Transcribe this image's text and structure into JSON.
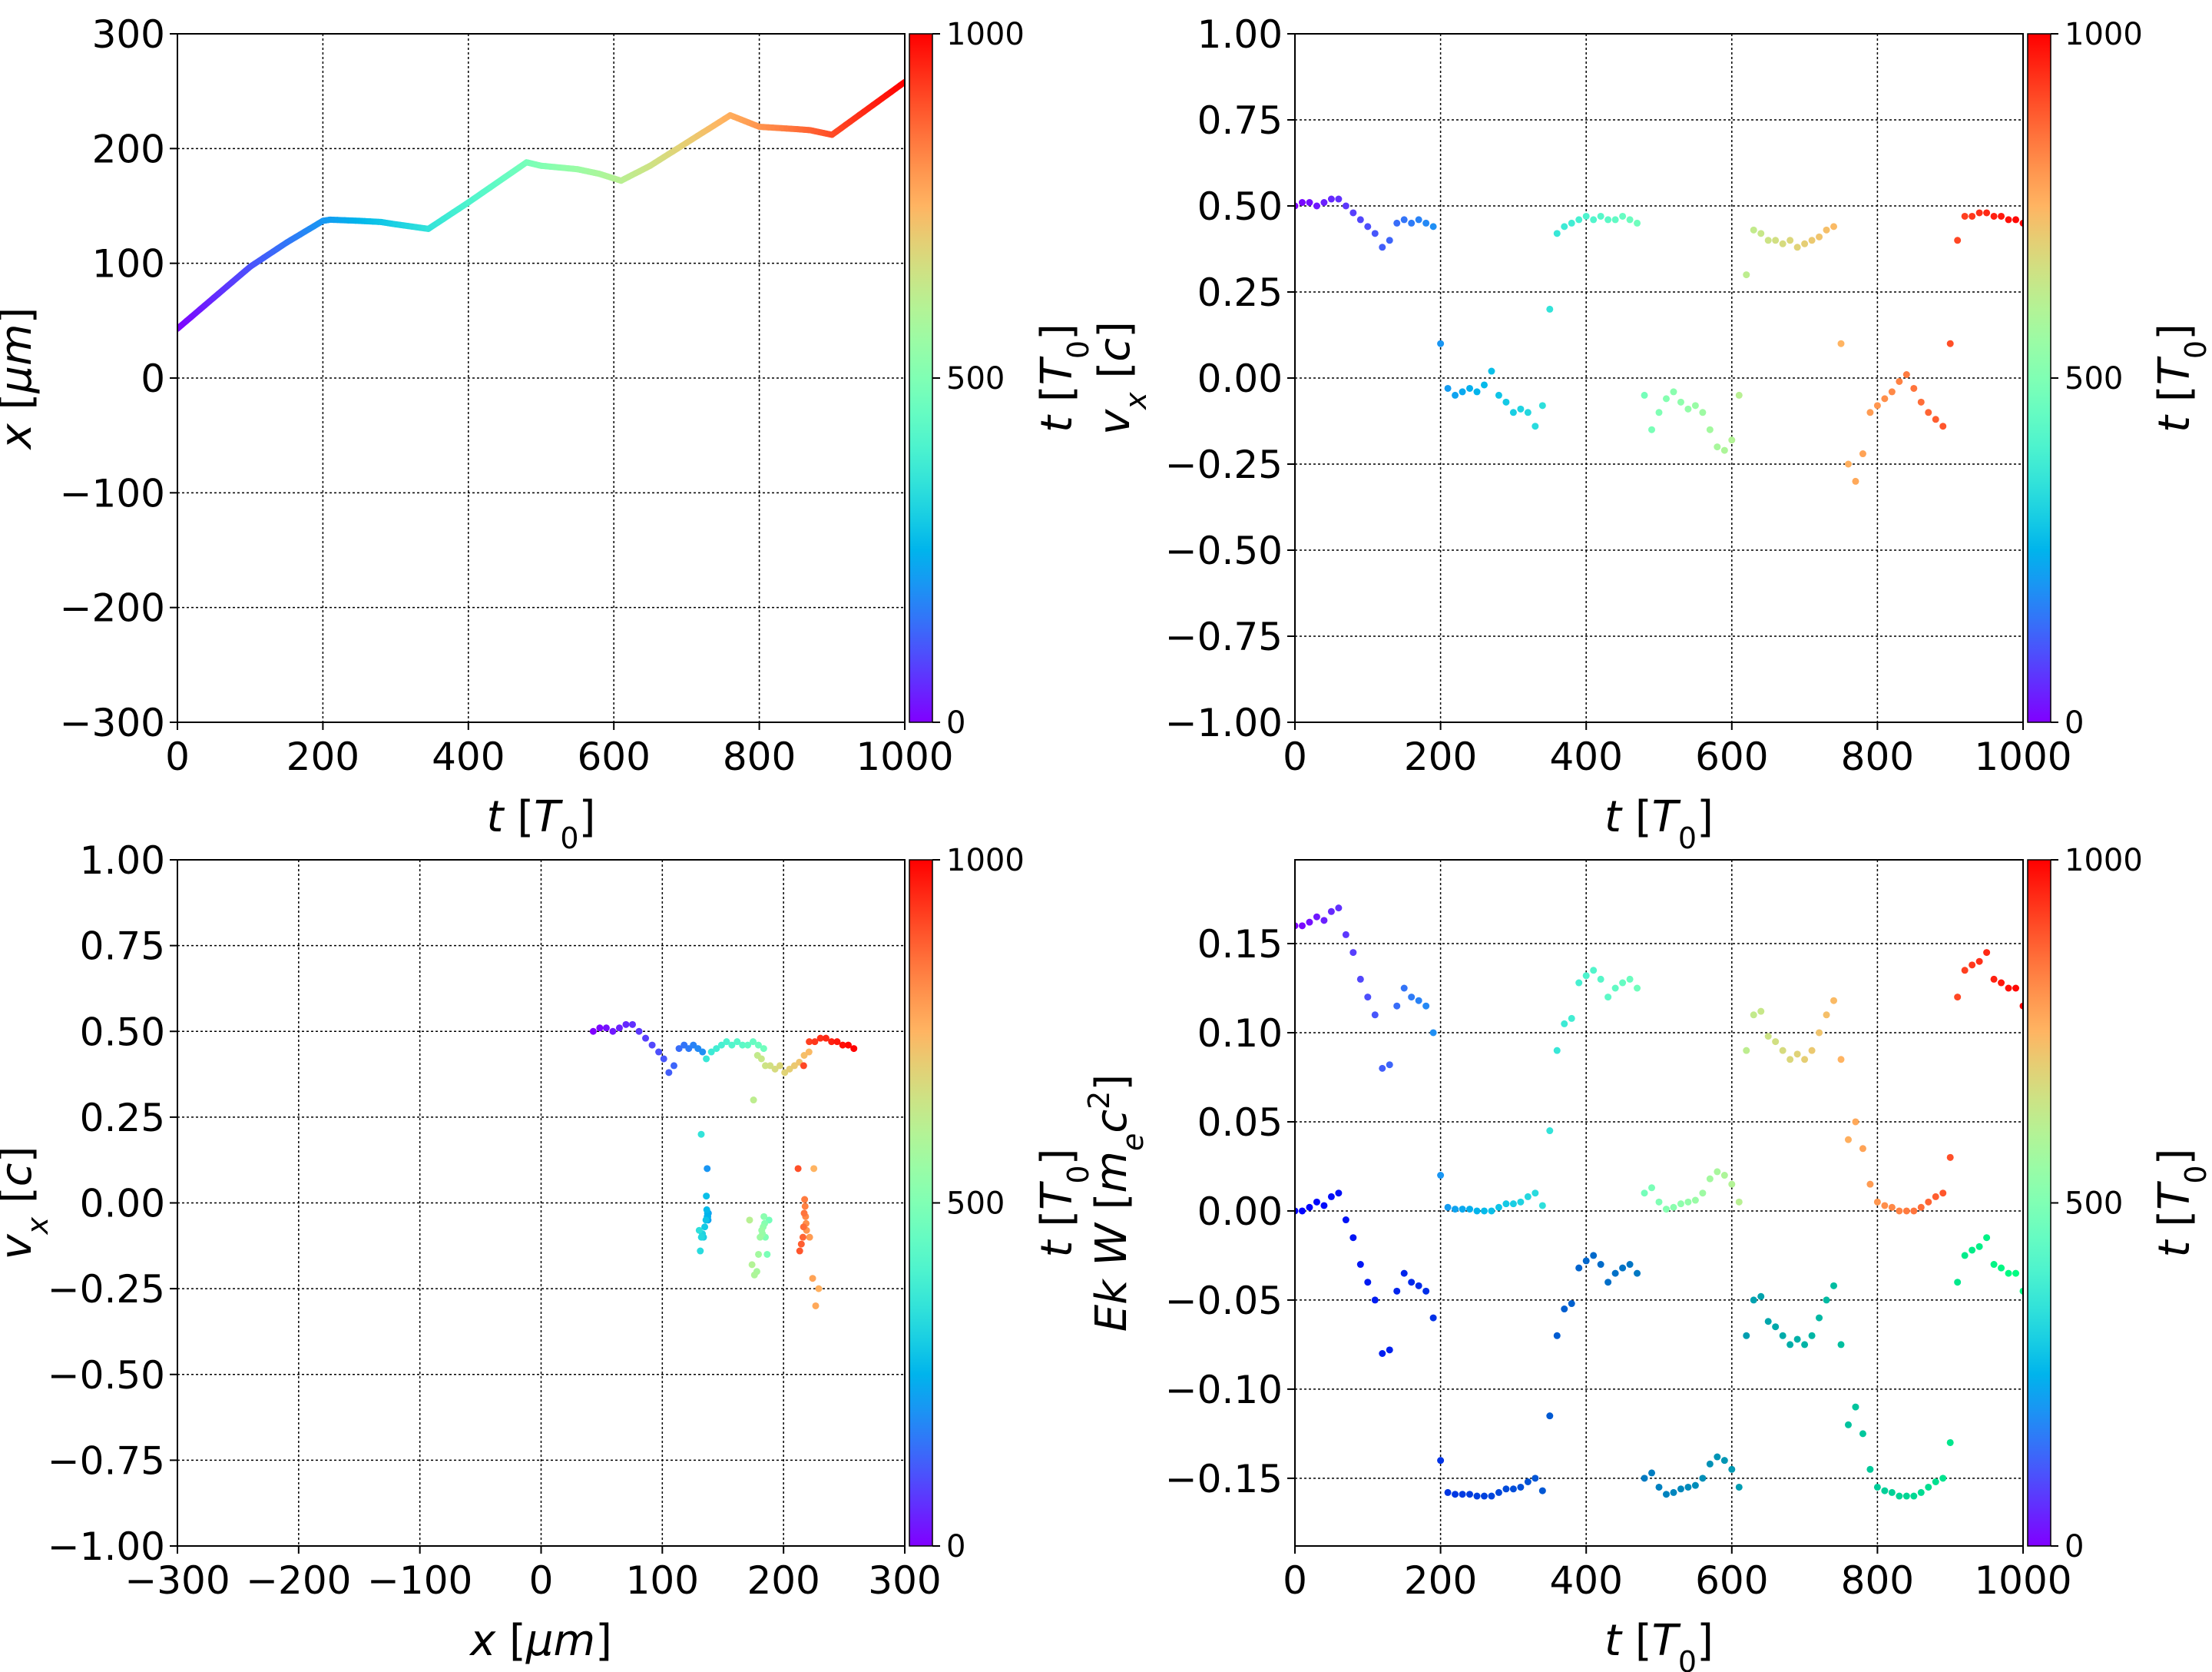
{
  "colormaps": {
    "primary": "rainbow",
    "secondary_lower_series": "winter"
  },
  "chart_data": [
    {
      "id": "tl",
      "type": "line",
      "color_by": "t",
      "xlabel": {
        "var": "t",
        "unit": "T",
        "sub": "0"
      },
      "ylabel": {
        "var": "x",
        "unit": "μm"
      },
      "xlim": [
        0,
        1000
      ],
      "ylim": [
        -300,
        300
      ],
      "xticks": [
        "0",
        "200",
        "400",
        "600",
        "800",
        "1000"
      ],
      "yticks": [
        "−300",
        "−200",
        "−100",
        "0",
        "100",
        "200",
        "300"
      ],
      "grid": true,
      "colorbar": {
        "label": {
          "var": "t",
          "unit": "T",
          "sub": "0"
        },
        "ticks": [
          "0",
          "500",
          "1000"
        ],
        "range": [
          0,
          1000
        ]
      },
      "x": [
        0,
        50,
        100,
        150,
        200,
        210,
        250,
        280,
        300,
        345,
        400,
        480,
        500,
        550,
        580,
        610,
        650,
        700,
        760,
        800,
        850,
        870,
        900,
        950,
        1000
      ],
      "y": [
        43,
        70,
        97,
        118,
        137,
        138,
        137,
        136,
        134,
        130,
        153,
        188,
        185,
        182,
        178,
        172,
        185,
        205,
        229,
        219,
        217,
        216,
        212,
        235,
        258
      ]
    },
    {
      "id": "tr",
      "type": "scatter",
      "color_by": "t",
      "xlabel": {
        "var": "t",
        "unit": "T",
        "sub": "0"
      },
      "ylabel": {
        "var": "v",
        "varsub": "x",
        "unit": "c"
      },
      "xlim": [
        0,
        1000
      ],
      "ylim": [
        -1,
        1
      ],
      "xticks": [
        "0",
        "200",
        "400",
        "600",
        "800",
        "1000"
      ],
      "yticks": [
        "−1.00",
        "−0.75",
        "−0.50",
        "−0.25",
        "0.00",
        "0.25",
        "0.50",
        "0.75",
        "1.00"
      ],
      "grid": true,
      "colorbar": {
        "label": {
          "var": "t",
          "unit": "T",
          "sub": "0"
        },
        "ticks": [
          "0",
          "500",
          "1000"
        ],
        "range": [
          0,
          1000
        ]
      },
      "t": [
        0,
        10,
        20,
        30,
        40,
        50,
        60,
        70,
        80,
        90,
        100,
        110,
        120,
        130,
        140,
        150,
        160,
        170,
        180,
        190,
        200,
        210,
        220,
        230,
        240,
        250,
        260,
        270,
        280,
        290,
        300,
        310,
        320,
        330,
        340,
        350,
        360,
        370,
        380,
        390,
        400,
        410,
        420,
        430,
        440,
        450,
        460,
        470,
        480,
        490,
        500,
        510,
        520,
        530,
        540,
        550,
        560,
        570,
        580,
        590,
        600,
        610,
        620,
        630,
        640,
        650,
        660,
        670,
        680,
        690,
        700,
        710,
        720,
        730,
        740,
        750,
        760,
        770,
        780,
        790,
        800,
        810,
        820,
        830,
        840,
        850,
        860,
        870,
        880,
        890,
        900,
        910,
        920,
        930,
        940,
        950,
        960,
        970,
        980,
        990,
        1000
      ],
      "vx": [
        0.5,
        0.51,
        0.51,
        0.5,
        0.51,
        0.52,
        0.52,
        0.5,
        0.48,
        0.46,
        0.44,
        0.42,
        0.38,
        0.4,
        0.45,
        0.46,
        0.45,
        0.46,
        0.45,
        0.44,
        0.1,
        -0.03,
        -0.05,
        -0.04,
        -0.03,
        -0.04,
        -0.02,
        0.02,
        -0.05,
        -0.07,
        -0.1,
        -0.09,
        -0.1,
        -0.14,
        -0.08,
        0.2,
        0.42,
        0.44,
        0.45,
        0.46,
        0.47,
        0.46,
        0.47,
        0.46,
        0.46,
        0.47,
        0.46,
        0.45,
        -0.05,
        -0.15,
        -0.1,
        -0.06,
        -0.04,
        -0.07,
        -0.09,
        -0.08,
        -0.1,
        -0.15,
        -0.2,
        -0.21,
        -0.18,
        -0.05,
        0.3,
        0.43,
        0.42,
        0.4,
        0.4,
        0.39,
        0.4,
        0.38,
        0.39,
        0.4,
        0.41,
        0.43,
        0.44,
        0.1,
        -0.25,
        -0.3,
        -0.22,
        -0.1,
        -0.08,
        -0.06,
        -0.04,
        -0.01,
        0.01,
        -0.03,
        -0.07,
        -0.1,
        -0.12,
        -0.14,
        0.1,
        0.4,
        0.47,
        0.47,
        0.48,
        0.48,
        0.47,
        0.47,
        0.46,
        0.46,
        0.45
      ]
    },
    {
      "id": "bl",
      "type": "scatter",
      "color_by": "t",
      "xlabel": {
        "var": "x",
        "unit": "μm"
      },
      "ylabel": {
        "var": "v",
        "varsub": "x",
        "unit": "c"
      },
      "xlim": [
        -300,
        300
      ],
      "ylim": [
        -1,
        1
      ],
      "xticks": [
        "−300",
        "−200",
        "−100",
        "0",
        "100",
        "200",
        "300"
      ],
      "yticks": [
        "−1.00",
        "−0.75",
        "−0.50",
        "−0.25",
        "0.00",
        "0.25",
        "0.50",
        "0.75",
        "1.00"
      ],
      "grid": true,
      "colorbar": {
        "label": {
          "var": "t",
          "unit": "T",
          "sub": "0"
        },
        "ticks": [
          "0",
          "500",
          "1000"
        ],
        "range": [
          0,
          1000
        ]
      },
      "x_from": "tl",
      "vx_from": "tr"
    },
    {
      "id": "br",
      "type": "scatter",
      "color_by": "t",
      "xlabel": {
        "var": "t",
        "unit": "T",
        "sub": "0"
      },
      "ylabel": {
        "var": "Ek W",
        "unit": "m",
        "unitsub": "e",
        "unit2": "c",
        "unitsup": "2"
      },
      "xlim": [
        0,
        1000
      ],
      "ylim": [
        -0.188,
        0.197
      ],
      "xticks": [
        "0",
        "200",
        "400",
        "600",
        "800",
        "1000"
      ],
      "yticks": [
        "−0.15",
        "−0.10",
        "−0.05",
        "0.00",
        "0.05",
        "0.10",
        "0.15"
      ],
      "ytick_values": [
        -0.15,
        -0.1,
        -0.05,
        0,
        0.05,
        0.1,
        0.15
      ],
      "grid": true,
      "colorbar": {
        "label": {
          "var": "t",
          "unit": "T",
          "sub": "0"
        },
        "ticks": [
          "0",
          "500",
          "1000"
        ],
        "range": [
          0,
          1000
        ]
      },
      "t_from": "tr",
      "series": [
        {
          "colormap": "rainbow",
          "values": [
            0.16,
            0.16,
            0.162,
            0.165,
            0.163,
            0.168,
            0.17,
            0.155,
            0.145,
            0.13,
            0.12,
            0.11,
            0.08,
            0.082,
            0.115,
            0.125,
            0.12,
            0.118,
            0.115,
            0.1,
            0.02,
            0.002,
            0.001,
            0.001,
            0.001,
            0.0,
            0.0,
            0.0,
            0.002,
            0.004,
            0.004,
            0.005,
            0.008,
            0.01,
            0.003,
            0.045,
            0.09,
            0.105,
            0.108,
            0.128,
            0.132,
            0.135,
            0.13,
            0.12,
            0.125,
            0.128,
            0.13,
            0.125,
            0.01,
            0.013,
            0.005,
            0.001,
            0.002,
            0.004,
            0.005,
            0.006,
            0.01,
            0.018,
            0.022,
            0.02,
            0.015,
            0.005,
            0.09,
            0.11,
            0.112,
            0.098,
            0.095,
            0.09,
            0.085,
            0.088,
            0.085,
            0.09,
            0.1,
            0.11,
            0.118,
            0.085,
            0.04,
            0.05,
            0.035,
            0.015,
            0.005,
            0.003,
            0.002,
            0.0,
            0.0,
            0.0,
            0.002,
            0.005,
            0.008,
            0.01,
            0.03,
            0.12,
            0.135,
            0.138,
            0.14,
            0.145,
            0.13,
            0.128,
            0.125,
            0.125,
            0.115
          ]
        },
        {
          "colormap": "winter",
          "values": [
            0.0,
            0.0,
            0.002,
            0.005,
            0.003,
            0.008,
            0.01,
            -0.005,
            -0.015,
            -0.03,
            -0.04,
            -0.05,
            -0.08,
            -0.078,
            -0.045,
            -0.035,
            -0.04,
            -0.042,
            -0.045,
            -0.06,
            -0.14,
            -0.158,
            -0.159,
            -0.159,
            -0.159,
            -0.16,
            -0.16,
            -0.16,
            -0.158,
            -0.156,
            -0.156,
            -0.155,
            -0.152,
            -0.15,
            -0.157,
            -0.115,
            -0.07,
            -0.055,
            -0.052,
            -0.032,
            -0.028,
            -0.025,
            -0.03,
            -0.04,
            -0.035,
            -0.032,
            -0.03,
            -0.035,
            -0.15,
            -0.147,
            -0.155,
            -0.159,
            -0.158,
            -0.156,
            -0.155,
            -0.154,
            -0.15,
            -0.142,
            -0.138,
            -0.14,
            -0.145,
            -0.155,
            -0.07,
            -0.05,
            -0.048,
            -0.062,
            -0.065,
            -0.07,
            -0.075,
            -0.072,
            -0.075,
            -0.07,
            -0.06,
            -0.05,
            -0.042,
            -0.075,
            -0.12,
            -0.11,
            -0.125,
            -0.145,
            -0.155,
            -0.157,
            -0.158,
            -0.16,
            -0.16,
            -0.16,
            -0.158,
            -0.155,
            -0.152,
            -0.15,
            -0.13,
            -0.04,
            -0.025,
            -0.022,
            -0.02,
            -0.015,
            -0.03,
            -0.032,
            -0.035,
            -0.035,
            -0.045
          ]
        }
      ]
    }
  ]
}
